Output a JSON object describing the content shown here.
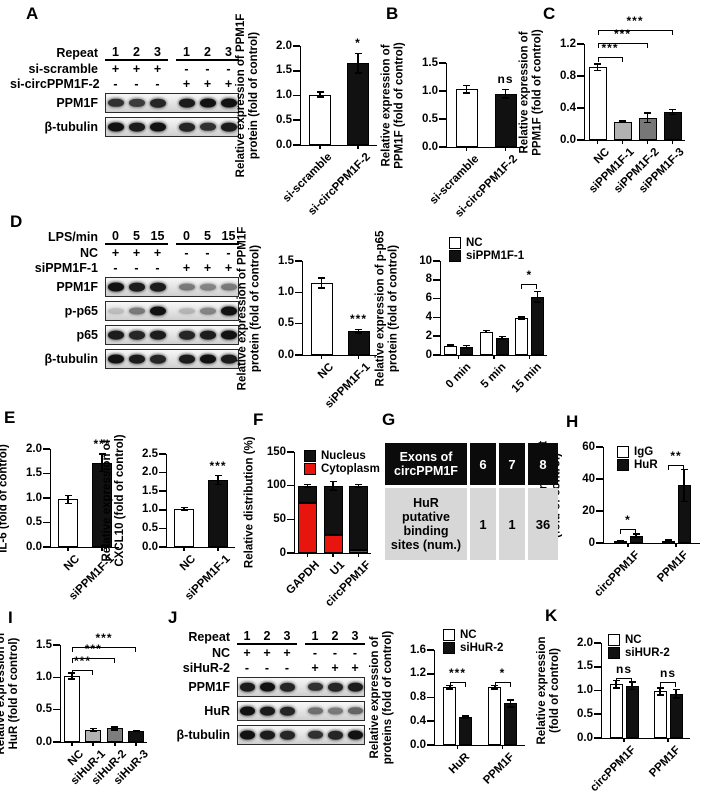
{
  "panels": {
    "A": {
      "letter": "A",
      "blot": {
        "header": {
          "label": "Repeat",
          "lanes": [
            "1",
            "2",
            "3",
            "1",
            "2",
            "3"
          ]
        },
        "conditions": [
          {
            "label": "si-scramble",
            "symbols": [
              "+",
              "+",
              "+",
              "-",
              "-",
              "-"
            ]
          },
          {
            "label": "si-circPPM1F-2",
            "symbols": [
              "-",
              "-",
              "-",
              "+",
              "+",
              "+"
            ]
          }
        ],
        "blots": [
          {
            "label": "PPM1F",
            "bands": [
              0.85,
              0.8,
              0.9,
              0.95,
              1,
              1
            ]
          },
          {
            "label": "β-tubulin",
            "bands": [
              1,
              0.95,
              1,
              0.9,
              0.85,
              0.95
            ]
          }
        ]
      },
      "chart": {
        "type": "bar",
        "ylabel": [
          "Relative expression of PPM1F",
          "protein (fold of control)"
        ],
        "ymax": 2.0,
        "yticks": [
          "0.0",
          "0.5",
          "1.0",
          "1.5",
          "2.0"
        ],
        "groups": [
          {
            "label": "si-scramble",
            "bars": [
              {
                "v": 1.02,
                "e": 0.05,
                "c": "#ffffff"
              }
            ]
          },
          {
            "label": "si-circPPM1F-2",
            "bars": [
              {
                "v": 1.65,
                "e": 0.2,
                "c": "#111111",
                "sig": "*"
              }
            ]
          }
        ]
      }
    },
    "B": {
      "letter": "B",
      "chart": {
        "type": "bar",
        "ylabel": [
          "Relative expression of",
          "PPM1F (fold of control)"
        ],
        "ymax": 1.5,
        "yticks": [
          "0.0",
          "0.5",
          "1.0",
          "1.5"
        ],
        "groups": [
          {
            "label": "si-scramble",
            "bars": [
              {
                "v": 1.03,
                "e": 0.07,
                "c": "#ffffff"
              }
            ]
          },
          {
            "label": "si-circPPM1F-2",
            "bars": [
              {
                "v": 0.95,
                "e": 0.08,
                "c": "#111111",
                "sig": "ns"
              }
            ]
          }
        ]
      }
    },
    "C": {
      "letter": "C",
      "chart": {
        "type": "bar",
        "ylabel": [
          "Relative expression of",
          "PPM1F (fold of control)"
        ],
        "ymax": 1.2,
        "yticks": [
          "0.0",
          "0.4",
          "0.8",
          "1.2"
        ],
        "groups": [
          {
            "label": "NC",
            "bars": [
              {
                "v": 0.91,
                "e": 0.04,
                "c": "#ffffff"
              }
            ]
          },
          {
            "label": "siPPM1F-1",
            "bars": [
              {
                "v": 0.23,
                "e": 0.01,
                "c": "#b2b2b2"
              }
            ]
          },
          {
            "label": "siPPM1F-2",
            "bars": [
              {
                "v": 0.28,
                "e": 0.06,
                "c": "#777777"
              }
            ]
          },
          {
            "label": "siPPM1F-3",
            "bars": [
              {
                "v": 0.35,
                "e": 0.03,
                "c": "#111111"
              }
            ]
          }
        ],
        "brackets": [
          {
            "a": 0,
            "b": 1,
            "y": 1.04,
            "t": "***"
          },
          {
            "a": 0,
            "b": 2,
            "y": 1.21,
            "t": "***"
          },
          {
            "a": 0,
            "b": 3,
            "y": 1.38,
            "t": "***"
          }
        ]
      }
    },
    "D": {
      "letter": "D",
      "blot": {
        "header": {
          "label": "LPS/min",
          "lanes": [
            "0",
            "5",
            "15",
            "0",
            "5",
            "15"
          ]
        },
        "conditions": [
          {
            "label": "NC",
            "symbols": [
              "+",
              "+",
              "+",
              "-",
              "-",
              "-"
            ]
          },
          {
            "label": "siPPM1F-1",
            "symbols": [
              "-",
              "-",
              "-",
              "+",
              "+",
              "+"
            ]
          }
        ],
        "blots": [
          {
            "label": "PPM1F",
            "bands": [
              1,
              0.95,
              0.95,
              0.5,
              0.45,
              0.5
            ]
          },
          {
            "label": "p-p65",
            "bands": [
              0.18,
              0.5,
              1,
              0.22,
              0.45,
              1
            ]
          },
          {
            "label": "p65",
            "bands": [
              0.95,
              0.9,
              0.95,
              0.9,
              0.95,
              1
            ]
          },
          {
            "label": "β-tubulin",
            "bands": [
              1,
              0.95,
              0.9,
              0.95,
              1,
              0.95
            ]
          }
        ]
      },
      "chart_ppm1f": {
        "type": "bar",
        "ylabel": [
          "Relative expression of PPM1F",
          "protein (fold of control)"
        ],
        "ymax": 1.5,
        "yticks": [
          "0.0",
          "0.5",
          "1.0",
          "1.5"
        ],
        "groups": [
          {
            "label": "NC",
            "bars": [
              {
                "v": 1.15,
                "e": 0.08,
                "c": "#ffffff"
              }
            ]
          },
          {
            "label": "siPPM1F-1",
            "bars": [
              {
                "v": 0.38,
                "e": 0.03,
                "c": "#111111",
                "sig": "***"
              }
            ]
          }
        ]
      },
      "chart_pp65": {
        "type": "bar",
        "ylabel": [
          "Relative expression of p-p65",
          "protein (fold of control)"
        ],
        "ymax": 10,
        "yticks": [
          "0",
          "2",
          "4",
          "6",
          "8",
          "10"
        ],
        "legend": [
          {
            "label": "NC",
            "c": "#ffffff"
          },
          {
            "label": "siPPM1F-1",
            "c": "#111111"
          }
        ],
        "groups": [
          {
            "label": "0 min",
            "bars": [
              {
                "v": 1.0,
                "e": 0.08,
                "c": "#ffffff"
              },
              {
                "v": 0.85,
                "e": 0.15,
                "c": "#111111"
              }
            ]
          },
          {
            "label": "5 min",
            "bars": [
              {
                "v": 2.5,
                "e": 0.12,
                "c": "#ffffff"
              },
              {
                "v": 1.85,
                "e": 0.12,
                "c": "#111111"
              }
            ]
          },
          {
            "label": "15 min",
            "bars": [
              {
                "v": 3.9,
                "e": 0.12,
                "c": "#ffffff"
              },
              {
                "v": 6.2,
                "e": 0.55,
                "c": "#111111"
              }
            ]
          }
        ],
        "brackets": [
          {
            "a": 4,
            "b": 5,
            "y": 7.6,
            "t": "*"
          }
        ]
      }
    },
    "E": {
      "letter": "E",
      "chart_il6": {
        "type": "bar",
        "ylabel": [
          "Relative expression of",
          "IL-6 (fold of control)"
        ],
        "ymax": 2.0,
        "yticks": [
          "0.0",
          "0.5",
          "1.0",
          "1.5",
          "2.0"
        ],
        "groups": [
          {
            "label": "NC",
            "bars": [
              {
                "v": 0.97,
                "e": 0.08,
                "c": "#ffffff"
              }
            ]
          },
          {
            "label": "siPPM1F-1",
            "bars": [
              {
                "v": 1.72,
                "e": 0.18,
                "c": "#111111",
                "sig": "***"
              }
            ]
          }
        ]
      },
      "chart_cxcl10": {
        "type": "bar",
        "ylabel": [
          "Relative expression of",
          "CXCL10 (fold of control)"
        ],
        "ymax": 2.5,
        "yticks": [
          "0.0",
          "0.5",
          "1.0",
          "1.5",
          "2.0",
          "2.5"
        ],
        "groups": [
          {
            "label": "NC",
            "bars": [
              {
                "v": 1.02,
                "e": 0.04,
                "c": "#ffffff"
              }
            ]
          },
          {
            "label": "siPPM1F-1",
            "bars": [
              {
                "v": 1.8,
                "e": 0.12,
                "c": "#111111",
                "sig": "***"
              }
            ]
          }
        ]
      }
    },
    "F": {
      "letter": "F",
      "chart": {
        "type": "bar",
        "stacked": true,
        "ylabel": [
          "Relative distribution (%)"
        ],
        "ymax": 150,
        "yticks": [
          "0",
          "50",
          "100",
          "150"
        ],
        "legend": [
          {
            "label": "Nucleus",
            "c": "#111111"
          },
          {
            "label": "Cytoplasm",
            "c": "#e8150f"
          }
        ],
        "groups": [
          {
            "label": "GAPDH",
            "bars": [
              {
                "stack": [
                  {
                    "v": 74,
                    "c": "#e8150f"
                  },
                  {
                    "v": 26,
                    "c": "#111111"
                  }
                ],
                "e": 2
              }
            ]
          },
          {
            "label": "U1",
            "bars": [
              {
                "stack": [
                  {
                    "v": 27,
                    "c": "#e8150f"
                  },
                  {
                    "v": 73,
                    "c": "#111111"
                  }
                ],
                "e": 6
              }
            ]
          },
          {
            "label": "circPPM1F",
            "bars": [
              {
                "stack": [
                  {
                    "v": 4,
                    "c": "#e8150f"
                  },
                  {
                    "v": 96,
                    "c": "#111111"
                  }
                ],
                "e": 2
              }
            ]
          }
        ]
      }
    },
    "G": {
      "letter": "G",
      "table": {
        "header_label": "Exons of circPPM1F",
        "header_cells": [
          "6",
          "7",
          "8"
        ],
        "row_label": "HuR putative binding sites (num.)",
        "row_cells": [
          "1",
          "1",
          "36"
        ]
      }
    },
    "H": {
      "letter": "H",
      "chart": {
        "type": "bar",
        "ylabel": [
          "Relative enrichment",
          "(fold of control)"
        ],
        "ymax": 60,
        "yticks": [
          "0",
          "20",
          "40",
          "60"
        ],
        "legend": [
          {
            "label": "IgG",
            "c": "#ffffff"
          },
          {
            "label": "HuR",
            "c": "#111111"
          }
        ],
        "groups": [
          {
            "label": "circPPM1F",
            "bars": [
              {
                "v": 1.2,
                "e": 0.3,
                "c": "#ffffff"
              },
              {
                "v": 4.5,
                "e": 1.0,
                "c": "#111111"
              }
            ]
          },
          {
            "label": "PPM1F",
            "bars": [
              {
                "v": 1.5,
                "e": 0.3,
                "c": "#ffffff"
              },
              {
                "v": 36,
                "e": 10,
                "c": "#111111"
              }
            ]
          }
        ],
        "brackets": [
          {
            "a": 0,
            "b": 1,
            "y": 8.8,
            "t": "*"
          },
          {
            "a": 2,
            "b": 3,
            "y": 49,
            "t": "**"
          }
        ]
      }
    },
    "I": {
      "letter": "I",
      "chart": {
        "type": "bar",
        "ylabel": [
          "Relative expression of",
          "HuR (fold of control)"
        ],
        "ymax": 1.5,
        "yticks": [
          "0.0",
          "0.5",
          "1.0",
          "1.5"
        ],
        "groups": [
          {
            "label": "NC",
            "bars": [
              {
                "v": 1.02,
                "e": 0.05,
                "c": "#ffffff"
              }
            ]
          },
          {
            "label": "siHuR-1",
            "bars": [
              {
                "v": 0.19,
                "e": 0.02,
                "c": "#b2b2b2"
              }
            ]
          },
          {
            "label": "siHuR-2",
            "bars": [
              {
                "v": 0.21,
                "e": 0.02,
                "c": "#7d7d7d"
              }
            ]
          },
          {
            "label": "siHuR-3",
            "bars": [
              {
                "v": 0.17,
                "e": 0.01,
                "c": "#111111"
              }
            ]
          }
        ],
        "brackets": [
          {
            "a": 0,
            "b": 1,
            "y": 1.12,
            "t": "***"
          },
          {
            "a": 0,
            "b": 2,
            "y": 1.3,
            "t": "***"
          },
          {
            "a": 0,
            "b": 3,
            "y": 1.47,
            "t": "***"
          }
        ]
      }
    },
    "J": {
      "letter": "J",
      "blot": {
        "header": {
          "label": "Repeat",
          "lanes": [
            "1",
            "2",
            "3",
            "1",
            "2",
            "3"
          ]
        },
        "conditions": [
          {
            "label": "NC",
            "symbols": [
              "+",
              "+",
              "+",
              "-",
              "-",
              "-"
            ]
          },
          {
            "label": "siHuR-2",
            "symbols": [
              "-",
              "-",
              "-",
              "+",
              "+",
              "+"
            ]
          }
        ],
        "blots": [
          {
            "label": "PPM1F",
            "bands": [
              0.95,
              1,
              0.9,
              0.85,
              0.9,
              0.95
            ]
          },
          {
            "label": "HuR",
            "bands": [
              1,
              0.95,
              0.9,
              0.55,
              0.5,
              0.6
            ]
          },
          {
            "label": "β-tubulin",
            "bands": [
              1,
              0.95,
              0.9,
              0.85,
              0.9,
              1
            ]
          }
        ]
      },
      "chart": {
        "type": "bar",
        "ylabel": [
          "Relative expression of",
          "proteins (fold of control)"
        ],
        "ymax": 1.6,
        "yticks": [
          "0.0",
          "0.4",
          "0.8",
          "1.2",
          "1.6"
        ],
        "legend": [
          {
            "label": "NC",
            "c": "#ffffff"
          },
          {
            "label": "siHuR-2",
            "c": "#111111"
          }
        ],
        "groups": [
          {
            "label": "HuR",
            "bars": [
              {
                "v": 0.97,
                "e": 0.03,
                "c": "#ffffff"
              },
              {
                "v": 0.47,
                "e": 0.02,
                "c": "#111111"
              }
            ]
          },
          {
            "label": "PPM1F",
            "bars": [
              {
                "v": 0.97,
                "e": 0.03,
                "c": "#ffffff"
              },
              {
                "v": 0.7,
                "e": 0.06,
                "c": "#111111"
              }
            ]
          }
        ],
        "brackets": [
          {
            "a": 0,
            "b": 1,
            "y": 1.06,
            "t": "***"
          },
          {
            "a": 2,
            "b": 3,
            "y": 1.06,
            "t": "*"
          }
        ]
      }
    },
    "K": {
      "letter": "K",
      "chart": {
        "type": "bar",
        "ylabel": [
          "Relative expression",
          "(fold of control)"
        ],
        "ymax": 2.0,
        "yticks": [
          "0.0",
          "0.5",
          "1.0",
          "1.5",
          "2.0"
        ],
        "legend": [
          {
            "label": "NC",
            "c": "#ffffff"
          },
          {
            "label": "siHUR-2",
            "c": "#111111"
          }
        ],
        "groups": [
          {
            "label": "circPPM1F",
            "bars": [
              {
                "v": 1.13,
                "e": 0.08,
                "c": "#ffffff"
              },
              {
                "v": 1.1,
                "e": 0.08,
                "c": "#111111"
              }
            ]
          },
          {
            "label": "PPM1F",
            "bars": [
              {
                "v": 0.98,
                "e": 0.07,
                "c": "#ffffff"
              },
              {
                "v": 0.93,
                "e": 0.09,
                "c": "#111111"
              }
            ]
          }
        ],
        "brackets": [
          {
            "a": 0,
            "b": 1,
            "y": 1.27,
            "t": "ns"
          },
          {
            "a": 2,
            "b": 3,
            "y": 1.17,
            "t": "ns"
          }
        ]
      }
    }
  }
}
